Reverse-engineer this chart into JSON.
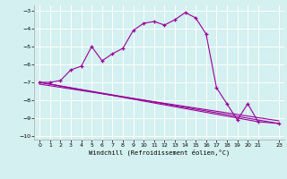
{
  "xlabel": "Windchill (Refroidissement éolien,°C)",
  "bg_color": "#d4f0f0",
  "line_color": "#990099",
  "grid_color": "#ffffff",
  "xlim": [
    -0.5,
    23.5
  ],
  "ylim": [
    -10.2,
    -2.7
  ],
  "yticks": [
    -10,
    -9,
    -8,
    -7,
    -6,
    -5,
    -4,
    -3
  ],
  "xticks": [
    0,
    1,
    2,
    3,
    4,
    5,
    6,
    7,
    8,
    9,
    10,
    11,
    12,
    13,
    14,
    15,
    16,
    17,
    18,
    19,
    20,
    21,
    23
  ],
  "line1_x": [
    0,
    1,
    2,
    3,
    4,
    5,
    6,
    7,
    8,
    9,
    10,
    11,
    12,
    13,
    14,
    15,
    16,
    17,
    18,
    19,
    20,
    21,
    23
  ],
  "line1_y": [
    -7.0,
    -7.0,
    -6.9,
    -6.3,
    -6.1,
    -5.0,
    -5.8,
    -5.4,
    -5.1,
    -4.1,
    -3.7,
    -3.6,
    -3.8,
    -3.5,
    -3.1,
    -3.4,
    -4.3,
    -7.3,
    -8.2,
    -9.1,
    -8.2,
    -9.2,
    -9.3
  ],
  "line2_x": [
    0,
    21
  ],
  "line2_y": [
    -7.0,
    -9.2
  ],
  "line3_x": [
    0,
    23
  ],
  "line3_y": [
    -7.0,
    -9.3
  ],
  "line4_x": [
    0,
    23
  ],
  "line4_y": [
    -7.1,
    -9.15
  ]
}
